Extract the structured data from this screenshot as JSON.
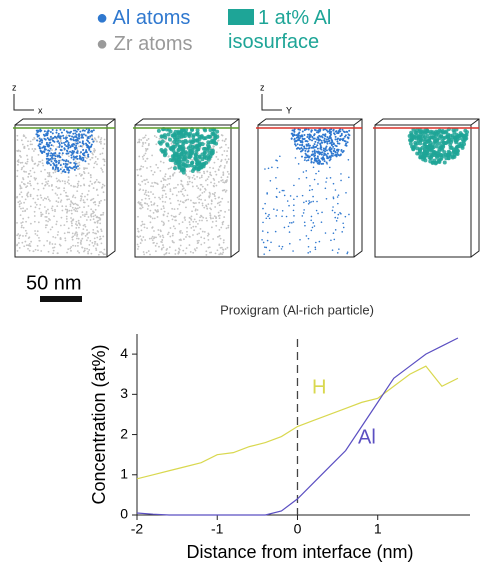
{
  "figure": {
    "legend": [
      {
        "label": "Al atoms",
        "color": "#2f78cf"
      },
      {
        "label": "Zr atoms",
        "color": "#9a9a9a"
      },
      {
        "label": "1 at% Al isosurface",
        "color": "#1ea597"
      }
    ],
    "axis_labels": [
      "z",
      "x",
      "z",
      "Y"
    ],
    "scale_bar": "50 nm"
  },
  "chart_data": {
    "type": "line",
    "title": "Proxigram (Al-rich particle)",
    "x_label": "Distance from interface (nm)",
    "y_label": "Concentration (at%)",
    "x": [
      -2,
      -1.8,
      -1.6,
      -1.4,
      -1.2,
      -1,
      -0.8,
      -0.6,
      -0.4,
      -0.2,
      0,
      0.2,
      0.4,
      0.6,
      0.8,
      1,
      1.2,
      1.4,
      1.6,
      1.8,
      2
    ],
    "series": [
      {
        "name": "H",
        "color": "#d9d84f",
        "values": [
          0.9,
          1.0,
          1.1,
          1.2,
          1.3,
          1.5,
          1.55,
          1.7,
          1.8,
          1.95,
          2.2,
          2.35,
          2.5,
          2.65,
          2.8,
          2.9,
          3.2,
          3.5,
          3.7,
          3.2,
          3.4
        ]
      },
      {
        "name": "Al",
        "color": "#5b4fc2",
        "values": [
          0.05,
          0.02,
          0,
          0,
          0,
          0,
          0,
          0,
          0,
          0.1,
          0.4,
          0.8,
          1.2,
          1.6,
          2.2,
          2.8,
          3.4,
          3.7,
          4.0,
          4.2,
          4.4
        ]
      }
    ],
    "vlines": [
      0
    ],
    "xlim": [
      -2,
      2.15
    ],
    "ylim": [
      0,
      4.5
    ],
    "xticks": [
      -2,
      -1,
      0,
      1
    ],
    "yticks": [
      0,
      1,
      2,
      3,
      4
    ]
  }
}
